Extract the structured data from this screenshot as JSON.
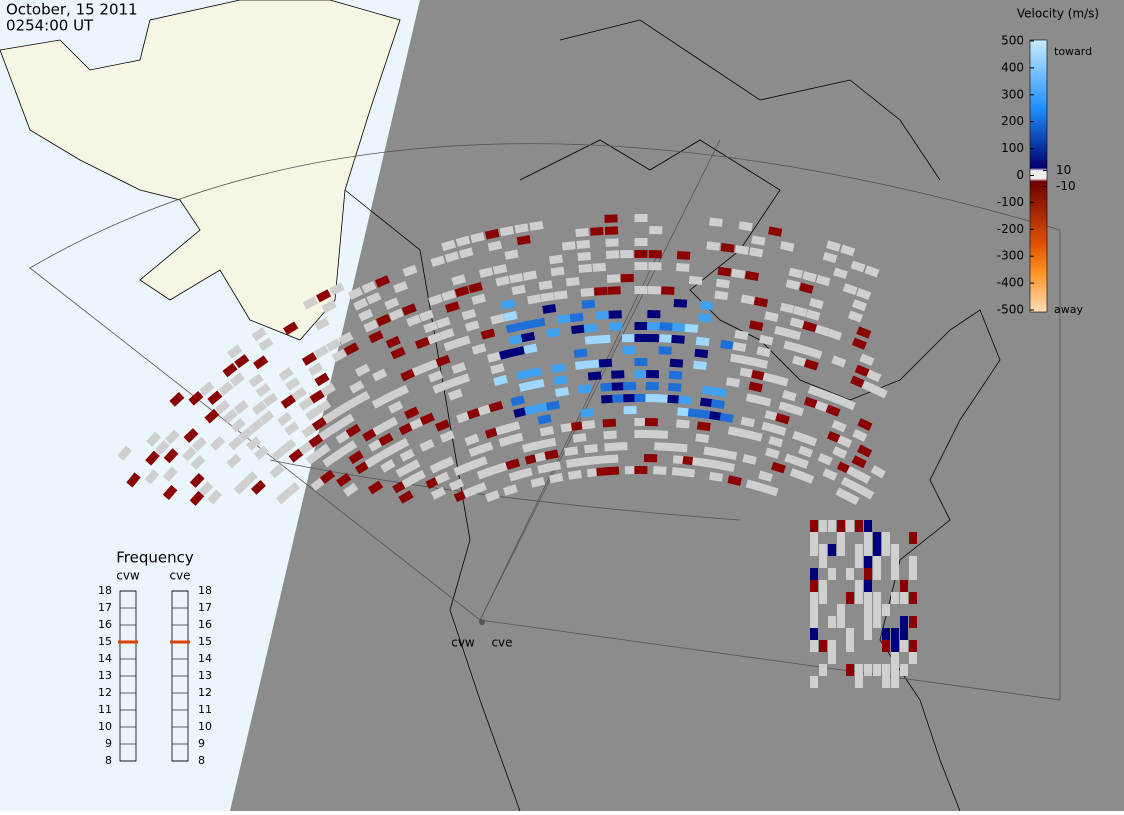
{
  "header": {
    "date": "October, 15 2011",
    "time": "0254:00 UT"
  },
  "velocity_scale": {
    "title": "Velocity (m/s)",
    "ticks": [
      500,
      400,
      300,
      200,
      100,
      0,
      -100,
      -200,
      -300,
      -400,
      -500
    ],
    "toward": "toward",
    "away": "away",
    "threshold_labels": [
      10,
      -10
    ]
  },
  "frequency": {
    "title": "Frequency",
    "ticks": [
      18,
      17,
      16,
      15,
      14,
      13,
      12,
      11,
      10,
      9,
      8
    ],
    "radars": [
      {
        "name": "cvw",
        "selected": 15
      },
      {
        "name": "cve",
        "selected": 15
      }
    ]
  },
  "radar_sites": [
    "cvw",
    "cve"
  ]
}
